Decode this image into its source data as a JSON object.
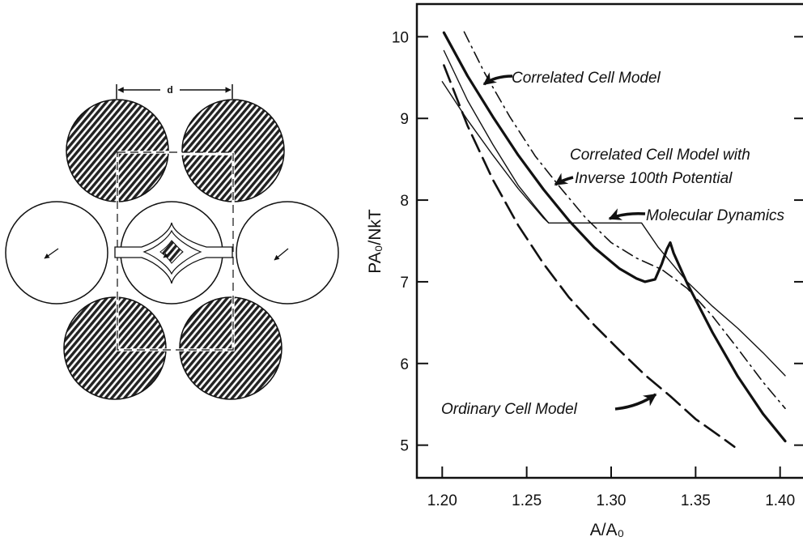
{
  "diagram": {
    "spacing_label": "d",
    "filled_disk_color": "#222222",
    "hatch": "diagonal"
  },
  "chart_data": {
    "type": "line",
    "xlabel": "A/A₀",
    "ylabel": "PA₀/NkT",
    "xlim": [
      1.185,
      1.415
    ],
    "ylim": [
      4.6,
      10.4
    ],
    "xticks": [
      1.2,
      1.25,
      1.3,
      1.35,
      1.4
    ],
    "xtick_labels": [
      "1.20",
      "1.25",
      "1.30",
      "1.35",
      "1.40"
    ],
    "yticks": [
      5,
      6,
      7,
      8,
      9,
      10
    ],
    "ytick_labels": [
      "5",
      "6",
      "7",
      "8",
      "9",
      "10"
    ],
    "grid": false,
    "series": [
      {
        "name": "Correlated Cell Model",
        "style": "thick-solid",
        "x": [
          1.201,
          1.215,
          1.23,
          1.245,
          1.26,
          1.275,
          1.29,
          1.305,
          1.315,
          1.32,
          1.326,
          1.33,
          1.333,
          1.335,
          1.337,
          1.345,
          1.36,
          1.375,
          1.39,
          1.403
        ],
        "y": [
          10.05,
          9.52,
          9.02,
          8.55,
          8.13,
          7.75,
          7.42,
          7.16,
          7.04,
          7.0,
          7.03,
          7.22,
          7.4,
          7.48,
          7.35,
          6.98,
          6.38,
          5.84,
          5.38,
          5.05
        ]
      },
      {
        "name": "Correlated Cell Model with Inverse 100th Potential",
        "style": "dash-dot",
        "x": [
          1.213,
          1.225,
          1.24,
          1.255,
          1.27,
          1.285,
          1.3,
          1.315,
          1.33,
          1.345,
          1.36,
          1.375,
          1.39,
          1.403
        ],
        "y": [
          10.06,
          9.56,
          9.02,
          8.54,
          8.15,
          7.78,
          7.48,
          7.29,
          7.15,
          6.92,
          6.58,
          6.18,
          5.77,
          5.45
        ]
      },
      {
        "name": "Molecular Dynamics",
        "style": "thin-solid",
        "x": [
          1.201,
          1.215,
          1.23,
          1.245,
          1.255,
          1.263,
          1.318,
          1.328,
          1.345,
          1.36,
          1.375,
          1.39,
          1.403
        ],
        "y": [
          9.83,
          9.22,
          8.68,
          8.18,
          7.92,
          7.72,
          7.72,
          7.42,
          7.0,
          6.7,
          6.43,
          6.13,
          5.85
        ]
      },
      {
        "name": "Ordinary Cell Model",
        "style": "long-dash",
        "x": [
          1.201,
          1.215,
          1.23,
          1.245,
          1.26,
          1.275,
          1.29,
          1.305,
          1.32,
          1.335,
          1.35,
          1.365,
          1.373
        ],
        "y": [
          9.65,
          8.91,
          8.25,
          7.69,
          7.22,
          6.81,
          6.47,
          6.16,
          5.86,
          5.6,
          5.32,
          5.1,
          4.98
        ]
      },
      {
        "name": "",
        "style": "thin-solid",
        "x": [
          1.2,
          1.215,
          1.23,
          1.245,
          1.26,
          1.263
        ],
        "y": [
          9.45,
          8.98,
          8.55,
          8.14,
          7.78,
          7.72
        ]
      }
    ],
    "annotations": [
      {
        "text": "Correlated Cell Model",
        "arrow_to": [
          1.219,
          9.42
        ]
      },
      {
        "text": "Correlated Cell Model with",
        "arrow_to": null
      },
      {
        "text": "Inverse 100th Potential",
        "arrow_to": [
          1.234,
          8.22
        ]
      },
      {
        "text": "Molecular Dynamics",
        "arrow_to": [
          1.298,
          7.78
        ]
      },
      {
        "text": "Ordinary Cell Model",
        "arrow_to": [
          1.33,
          5.65
        ]
      }
    ]
  }
}
